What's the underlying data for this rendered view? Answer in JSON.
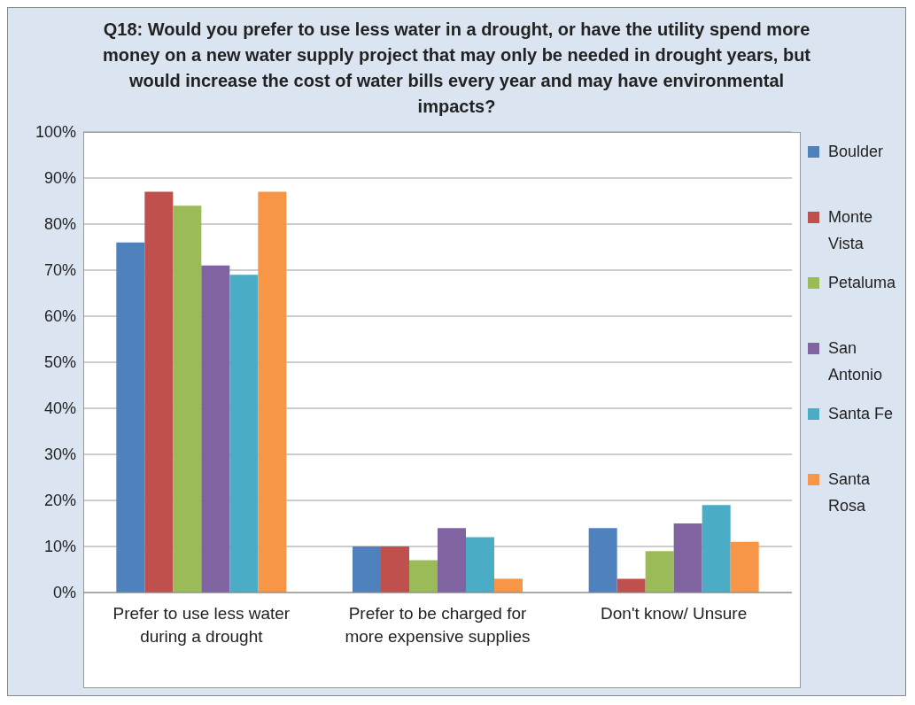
{
  "chart_data": {
    "type": "bar",
    "title": "Q18: Would you prefer to use less water in a drought, or have the utility spend more money on a new water supply project that may only be needed in drought years, but would increase the cost of water bills every year and may have environmental impacts?",
    "categories": [
      "Prefer to use less water during a drought",
      "Prefer to be charged for more expensive supplies",
      "Don't know/ Unsure"
    ],
    "series": [
      {
        "name": "Boulder",
        "color": "#4f81bd",
        "values": [
          76,
          10,
          14
        ]
      },
      {
        "name": "Monte Vista",
        "color": "#c0504d",
        "values": [
          87,
          10,
          3
        ]
      },
      {
        "name": "Petaluma",
        "color": "#9bbb59",
        "values": [
          84,
          7,
          9
        ]
      },
      {
        "name": "San Antonio",
        "color": "#8064a2",
        "values": [
          71,
          14,
          15
        ]
      },
      {
        "name": "Santa Fe",
        "color": "#4bacc6",
        "values": [
          69,
          12,
          19
        ]
      },
      {
        "name": "Santa Rosa",
        "color": "#f79646",
        "values": [
          87,
          3,
          11
        ]
      }
    ],
    "ylim": [
      0,
      100
    ],
    "yticks": [
      {
        "value": 0,
        "label": "0%"
      },
      {
        "value": 10,
        "label": "10%"
      },
      {
        "value": 20,
        "label": "20%"
      },
      {
        "value": 30,
        "label": "30%"
      },
      {
        "value": 40,
        "label": "40%"
      },
      {
        "value": 50,
        "label": "50%"
      },
      {
        "value": 60,
        "label": "60%"
      },
      {
        "value": 70,
        "label": "70%"
      },
      {
        "value": 80,
        "label": "80%"
      },
      {
        "value": 90,
        "label": "90%"
      },
      {
        "value": 100,
        "label": "100%"
      }
    ],
    "grid": "y",
    "legend": "right"
  }
}
